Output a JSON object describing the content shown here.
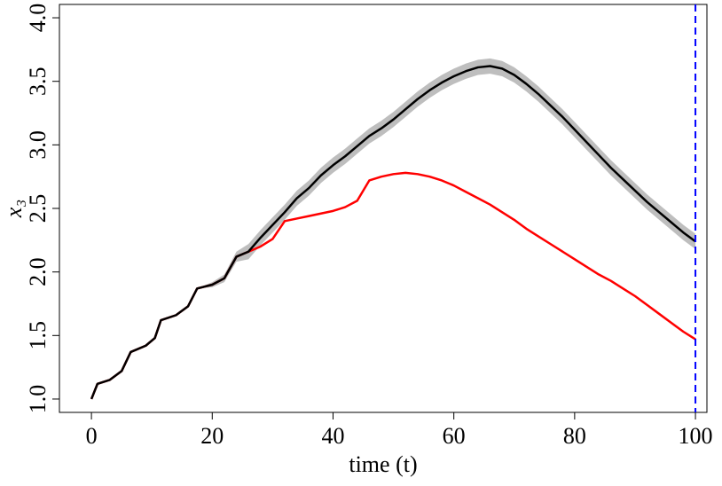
{
  "chart_data": {
    "type": "line",
    "xlabel": "time (t)",
    "ylabel": "x₃",
    "xlim": [
      -5.3,
      101.9
    ],
    "ylim": [
      0.895,
      4.105
    ],
    "xticks": [
      0,
      20,
      40,
      60,
      80,
      100
    ],
    "yticks": [
      {
        "value": 1,
        "label": "1.0"
      },
      {
        "value": 1.5,
        "label": "1.5"
      },
      {
        "value": 2,
        "label": "2.0"
      },
      {
        "value": 2.5,
        "label": "2.5"
      },
      {
        "value": 3,
        "label": "3.0"
      },
      {
        "value": 3.5,
        "label": "3.5"
      },
      {
        "value": 4,
        "label": "4.0"
      }
    ],
    "x": [
      0,
      1,
      3,
      5,
      6.5,
      9,
      10.5,
      11.5,
      14,
      16,
      17.5,
      20,
      22,
      24,
      26,
      28,
      30,
      32,
      34,
      36,
      38,
      40,
      42,
      44,
      46,
      48,
      50,
      52,
      54,
      56,
      58,
      60,
      62,
      64,
      66,
      68,
      70,
      72,
      74,
      76,
      78,
      80,
      82,
      84,
      86,
      88,
      90,
      92,
      94,
      96,
      98,
      100
    ],
    "band": {
      "color": "#bebebe",
      "upper": [
        1.0,
        1.12,
        1.15,
        1.22,
        1.37,
        1.42,
        1.48,
        1.62,
        1.66,
        1.73,
        1.87,
        1.92,
        1.98,
        2.16,
        2.22,
        2.33,
        2.43,
        2.53,
        2.64,
        2.72,
        2.82,
        2.9,
        2.97,
        3.05,
        3.13,
        3.19,
        3.26,
        3.34,
        3.42,
        3.49,
        3.55,
        3.6,
        3.64,
        3.67,
        3.68,
        3.66,
        3.61,
        3.54,
        3.46,
        3.37,
        3.28,
        3.18,
        3.08,
        2.98,
        2.88,
        2.79,
        2.7,
        2.61,
        2.53,
        2.45,
        2.37,
        2.3
      ],
      "lower": [
        1.0,
        1.12,
        1.15,
        1.22,
        1.37,
        1.42,
        1.48,
        1.62,
        1.66,
        1.73,
        1.87,
        1.88,
        1.92,
        2.08,
        2.1,
        2.21,
        2.31,
        2.41,
        2.52,
        2.6,
        2.7,
        2.78,
        2.85,
        2.93,
        3.01,
        3.07,
        3.14,
        3.22,
        3.3,
        3.37,
        3.43,
        3.48,
        3.52,
        3.55,
        3.56,
        3.54,
        3.49,
        3.42,
        3.34,
        3.25,
        3.16,
        3.06,
        2.96,
        2.86,
        2.76,
        2.67,
        2.58,
        2.49,
        2.41,
        2.33,
        2.25,
        2.18
      ]
    },
    "lines": [
      {
        "color": "#000000",
        "values": [
          1.0,
          1.12,
          1.15,
          1.22,
          1.37,
          1.42,
          1.48,
          1.62,
          1.66,
          1.73,
          1.87,
          1.9,
          1.95,
          2.12,
          2.16,
          2.27,
          2.37,
          2.47,
          2.58,
          2.66,
          2.76,
          2.84,
          2.91,
          2.99,
          3.07,
          3.13,
          3.2,
          3.28,
          3.36,
          3.43,
          3.49,
          3.54,
          3.58,
          3.61,
          3.62,
          3.6,
          3.55,
          3.48,
          3.4,
          3.31,
          3.22,
          3.12,
          3.02,
          2.92,
          2.82,
          2.73,
          2.64,
          2.55,
          2.47,
          2.39,
          2.31,
          2.24
        ]
      },
      {
        "color": "#ff0000",
        "values": [
          1.0,
          1.12,
          1.15,
          1.22,
          1.37,
          1.42,
          1.48,
          1.62,
          1.66,
          1.73,
          1.87,
          1.9,
          1.95,
          2.12,
          2.16,
          2.2,
          2.26,
          2.4,
          2.42,
          2.44,
          2.46,
          2.48,
          2.51,
          2.56,
          2.72,
          2.75,
          2.77,
          2.78,
          2.77,
          2.75,
          2.72,
          2.68,
          2.63,
          2.58,
          2.53,
          2.47,
          2.41,
          2.34,
          2.28,
          2.22,
          2.16,
          2.1,
          2.04,
          1.98,
          1.93,
          1.87,
          1.81,
          1.74,
          1.67,
          1.6,
          1.53,
          1.47
        ]
      }
    ],
    "vline": {
      "x": 100,
      "color": "#0000ff"
    }
  }
}
